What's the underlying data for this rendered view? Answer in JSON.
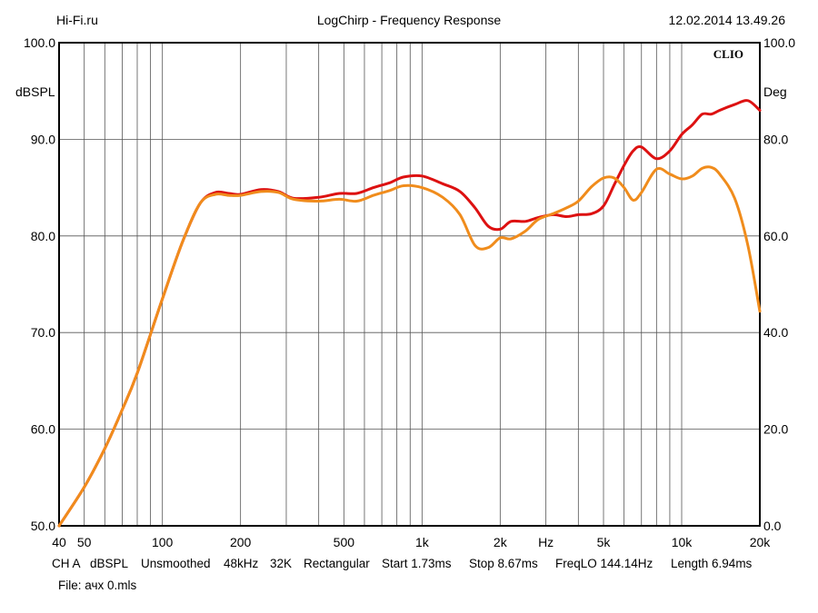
{
  "header": {
    "left": "Hi-Fi.ru",
    "center": "LogChirp - Frequency Response",
    "right": "12.02.2014 13.49.26"
  },
  "chart_data": {
    "type": "line",
    "title": "LogChirp - Frequency Response",
    "brand": "CLIO",
    "xscale": "log",
    "xlim": [
      40,
      20000
    ],
    "ylim": [
      50,
      100
    ],
    "y2lim": [
      0,
      100
    ],
    "ylabel": "dBSPL",
    "y2label": "Deg",
    "xunit": "Hz",
    "grid": true,
    "yticks": [
      "100.0",
      "90.0",
      "80.0",
      "70.0",
      "60.0",
      "50.0"
    ],
    "y2ticks": [
      "100.0",
      "80.0",
      "60.0",
      "40.0",
      "20.0",
      "0.0"
    ],
    "xtick_labels": [
      {
        "f": 40,
        "label": "40"
      },
      {
        "f": 50,
        "label": "50"
      },
      {
        "f": 100,
        "label": "100"
      },
      {
        "f": 200,
        "label": "200"
      },
      {
        "f": 500,
        "label": "500"
      },
      {
        "f": 1000,
        "label": "1k"
      },
      {
        "f": 2000,
        "label": "2k"
      },
      {
        "f": 3000,
        "label": "Hz"
      },
      {
        "f": 5000,
        "label": "5k"
      },
      {
        "f": 10000,
        "label": "10k"
      },
      {
        "f": 20000,
        "label": "20k"
      }
    ],
    "series": [
      {
        "color": "#dd1111",
        "x": [
          40,
          50,
          60,
          70,
          80,
          100,
          120,
          140,
          160,
          180,
          200,
          240,
          280,
          320,
          400,
          480,
          560,
          650,
          750,
          850,
          1000,
          1200,
          1400,
          1600,
          1800,
          2000,
          2200,
          2500,
          2800,
          3200,
          3600,
          4000,
          4500,
          5000,
          5500,
          6000,
          6500,
          7000,
          8000,
          9000,
          10000,
          11000,
          12000,
          13000,
          14000,
          16000,
          18000,
          20000
        ],
        "y": [
          50,
          54,
          58,
          62,
          65.8,
          73.5,
          79.5,
          83.4,
          84.5,
          84.4,
          84.3,
          84.8,
          84.6,
          83.9,
          84.0,
          84.4,
          84.4,
          85.0,
          85.5,
          86.1,
          86.2,
          85.4,
          84.6,
          82.9,
          81.0,
          80.7,
          81.5,
          81.5,
          81.9,
          82.2,
          82.0,
          82.2,
          82.3,
          83.1,
          85.3,
          87.3,
          88.8,
          89.2,
          88.0,
          88.8,
          90.5,
          91.5,
          92.6,
          92.6,
          93.0,
          93.6,
          94.0,
          93.0
        ]
      },
      {
        "color": "#f08c1c",
        "x": [
          40,
          50,
          60,
          70,
          80,
          100,
          120,
          140,
          160,
          180,
          200,
          240,
          280,
          320,
          400,
          480,
          560,
          650,
          750,
          850,
          1000,
          1200,
          1400,
          1600,
          1800,
          2000,
          2200,
          2500,
          2800,
          3200,
          3600,
          4000,
          4500,
          5000,
          5500,
          6000,
          6500,
          7000,
          8000,
          9000,
          10000,
          11000,
          12000,
          13000,
          14000,
          16000,
          18000,
          20000
        ],
        "y": [
          50,
          54,
          58,
          62,
          65.8,
          73.5,
          79.5,
          83.4,
          84.3,
          84.2,
          84.2,
          84.6,
          84.5,
          83.8,
          83.6,
          83.8,
          83.6,
          84.2,
          84.7,
          85.2,
          85.0,
          84.0,
          82.2,
          79.0,
          78.8,
          79.8,
          79.7,
          80.5,
          81.7,
          82.3,
          82.9,
          83.6,
          85.1,
          86.0,
          86.0,
          85.0,
          83.7,
          84.5,
          86.9,
          86.4,
          85.9,
          86.2,
          87.0,
          87.1,
          86.4,
          83.9,
          79.0,
          72.2
        ]
      }
    ]
  },
  "footer": {
    "ch": "CH A",
    "unit": "dBSPL",
    "smoothing": "Unsmoothed",
    "rate": "48kHz",
    "size": "32K",
    "window": "Rectangular",
    "start": "Start 1.73ms",
    "stop": "Stop 8.67ms",
    "freqlo": "FreqLO 144.14Hz",
    "length": "Length 6.94ms",
    "file": "File: ачх 0.mls"
  }
}
